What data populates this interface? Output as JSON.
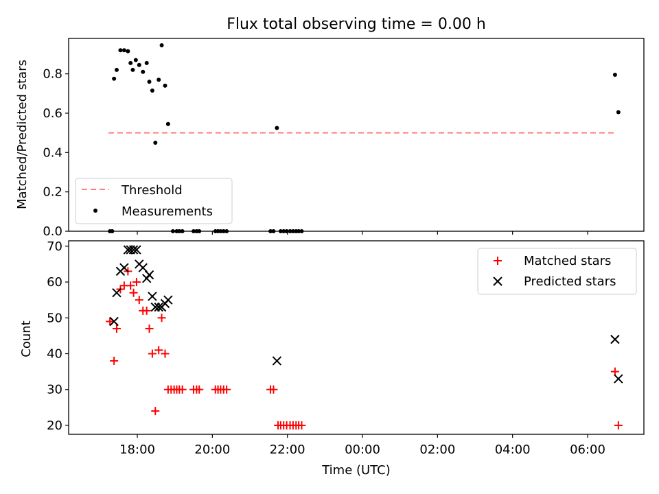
{
  "chart_data": [
    {
      "type": "scatter",
      "title": "Flux total observing time = 0.00 h",
      "xlabel": "",
      "ylabel": "Matched/Predicted stars",
      "xlim_hours": [
        16.17,
        7.5
      ],
      "ylim": [
        0,
        0.98
      ],
      "yticks": [
        "0.0",
        "0.2",
        "0.4",
        "0.6",
        "0.8"
      ],
      "yticks_values": [
        0,
        0.2,
        0.4,
        0.6,
        0.8
      ],
      "legend_position": "lower-left",
      "series": [
        {
          "name": "Threshold",
          "style": "dashed-line",
          "color": "#ff7f7f",
          "points": [
            [
              17.23,
              0.5
            ],
            [
              6.73,
              0.5
            ]
          ]
        },
        {
          "name": "Measurements",
          "style": "dot",
          "color": "#000000",
          "points": [
            [
              17.27,
              0.0
            ],
            [
              17.33,
              0.0
            ],
            [
              17.38,
              0.775
            ],
            [
              17.45,
              0.82
            ],
            [
              17.55,
              0.92
            ],
            [
              17.65,
              0.92
            ],
            [
              17.75,
              0.915
            ],
            [
              17.82,
              0.855
            ],
            [
              17.88,
              0.82
            ],
            [
              17.96,
              0.87
            ],
            [
              18.05,
              0.845
            ],
            [
              18.15,
              0.81
            ],
            [
              18.25,
              0.855
            ],
            [
              18.32,
              0.76
            ],
            [
              18.4,
              0.715
            ],
            [
              18.48,
              0.45
            ],
            [
              18.57,
              0.77
            ],
            [
              18.65,
              0.945
            ],
            [
              18.74,
              0.74
            ],
            [
              18.82,
              0.545
            ],
            [
              18.95,
              0.0
            ],
            [
              19.05,
              0.0
            ],
            [
              19.12,
              0.0
            ],
            [
              19.2,
              0.0
            ],
            [
              19.5,
              0.0
            ],
            [
              19.58,
              0.0
            ],
            [
              19.65,
              0.0
            ],
            [
              20.08,
              0.0
            ],
            [
              20.15,
              0.0
            ],
            [
              20.22,
              0.0
            ],
            [
              20.3,
              0.0
            ],
            [
              20.38,
              0.0
            ],
            [
              21.55,
              0.0
            ],
            [
              21.63,
              0.0
            ],
            [
              21.72,
              0.525
            ],
            [
              21.82,
              0.0
            ],
            [
              21.9,
              0.0
            ],
            [
              21.98,
              0.0
            ],
            [
              22.07,
              0.0
            ],
            [
              22.15,
              0.0
            ],
            [
              22.23,
              0.0
            ],
            [
              22.3,
              0.0
            ],
            [
              22.38,
              0.0
            ],
            [
              6.73,
              0.795
            ],
            [
              6.82,
              0.605
            ]
          ]
        }
      ]
    },
    {
      "type": "scatter",
      "title": "",
      "xlabel": "Time (UTC)",
      "ylabel": "Count",
      "xlim_hours": [
        16.17,
        7.5
      ],
      "ylim": [
        17.5,
        71.5
      ],
      "yticks": [
        "20",
        "30",
        "40",
        "50",
        "60",
        "70"
      ],
      "yticks_values": [
        20,
        30,
        40,
        50,
        60,
        70
      ],
      "xticks": [
        "18:00",
        "20:00",
        "22:00",
        "00:00",
        "02:00",
        "04:00",
        "06:00"
      ],
      "xticks_hours": [
        18,
        20,
        22,
        24,
        26,
        28,
        30
      ],
      "legend_position": "upper-right",
      "series": [
        {
          "name": "Matched stars",
          "marker": "plus",
          "color": "#ff0000",
          "points": [
            [
              17.27,
              49
            ],
            [
              17.38,
              38
            ],
            [
              17.45,
              47
            ],
            [
              17.55,
              58
            ],
            [
              17.65,
              59
            ],
            [
              17.75,
              63
            ],
            [
              17.82,
              59
            ],
            [
              17.9,
              57
            ],
            [
              17.98,
              60
            ],
            [
              18.05,
              55
            ],
            [
              18.15,
              52
            ],
            [
              18.25,
              52
            ],
            [
              18.32,
              47
            ],
            [
              18.4,
              40
            ],
            [
              18.48,
              24
            ],
            [
              18.57,
              41
            ],
            [
              18.65,
              50
            ],
            [
              18.74,
              40
            ],
            [
              18.82,
              30
            ],
            [
              18.9,
              30
            ],
            [
              18.98,
              30
            ],
            [
              19.05,
              30
            ],
            [
              19.12,
              30
            ],
            [
              19.2,
              30
            ],
            [
              19.5,
              30
            ],
            [
              19.58,
              30
            ],
            [
              19.65,
              30
            ],
            [
              20.08,
              30
            ],
            [
              20.15,
              30
            ],
            [
              20.22,
              30
            ],
            [
              20.3,
              30
            ],
            [
              20.38,
              30
            ],
            [
              21.55,
              30
            ],
            [
              21.63,
              30
            ],
            [
              21.75,
              20
            ],
            [
              21.82,
              20
            ],
            [
              21.9,
              20
            ],
            [
              21.98,
              20
            ],
            [
              22.07,
              20
            ],
            [
              22.15,
              20
            ],
            [
              22.23,
              20
            ],
            [
              22.3,
              20
            ],
            [
              22.38,
              20
            ],
            [
              30.73,
              35
            ],
            [
              30.82,
              20
            ]
          ]
        },
        {
          "name": "Predicted stars",
          "marker": "x",
          "color": "#000000",
          "points": [
            [
              17.38,
              49
            ],
            [
              17.45,
              57
            ],
            [
              17.55,
              63
            ],
            [
              17.65,
              64
            ],
            [
              17.75,
              69
            ],
            [
              17.82,
              69
            ],
            [
              17.9,
              69
            ],
            [
              17.98,
              69
            ],
            [
              18.05,
              65
            ],
            [
              18.15,
              64
            ],
            [
              18.25,
              61
            ],
            [
              18.32,
              62
            ],
            [
              18.4,
              56
            ],
            [
              18.48,
              53
            ],
            [
              18.57,
              53
            ],
            [
              18.65,
              53
            ],
            [
              18.74,
              54
            ],
            [
              18.82,
              55
            ],
            [
              21.72,
              38
            ],
            [
              30.73,
              44
            ],
            [
              30.82,
              33
            ]
          ]
        }
      ]
    }
  ]
}
